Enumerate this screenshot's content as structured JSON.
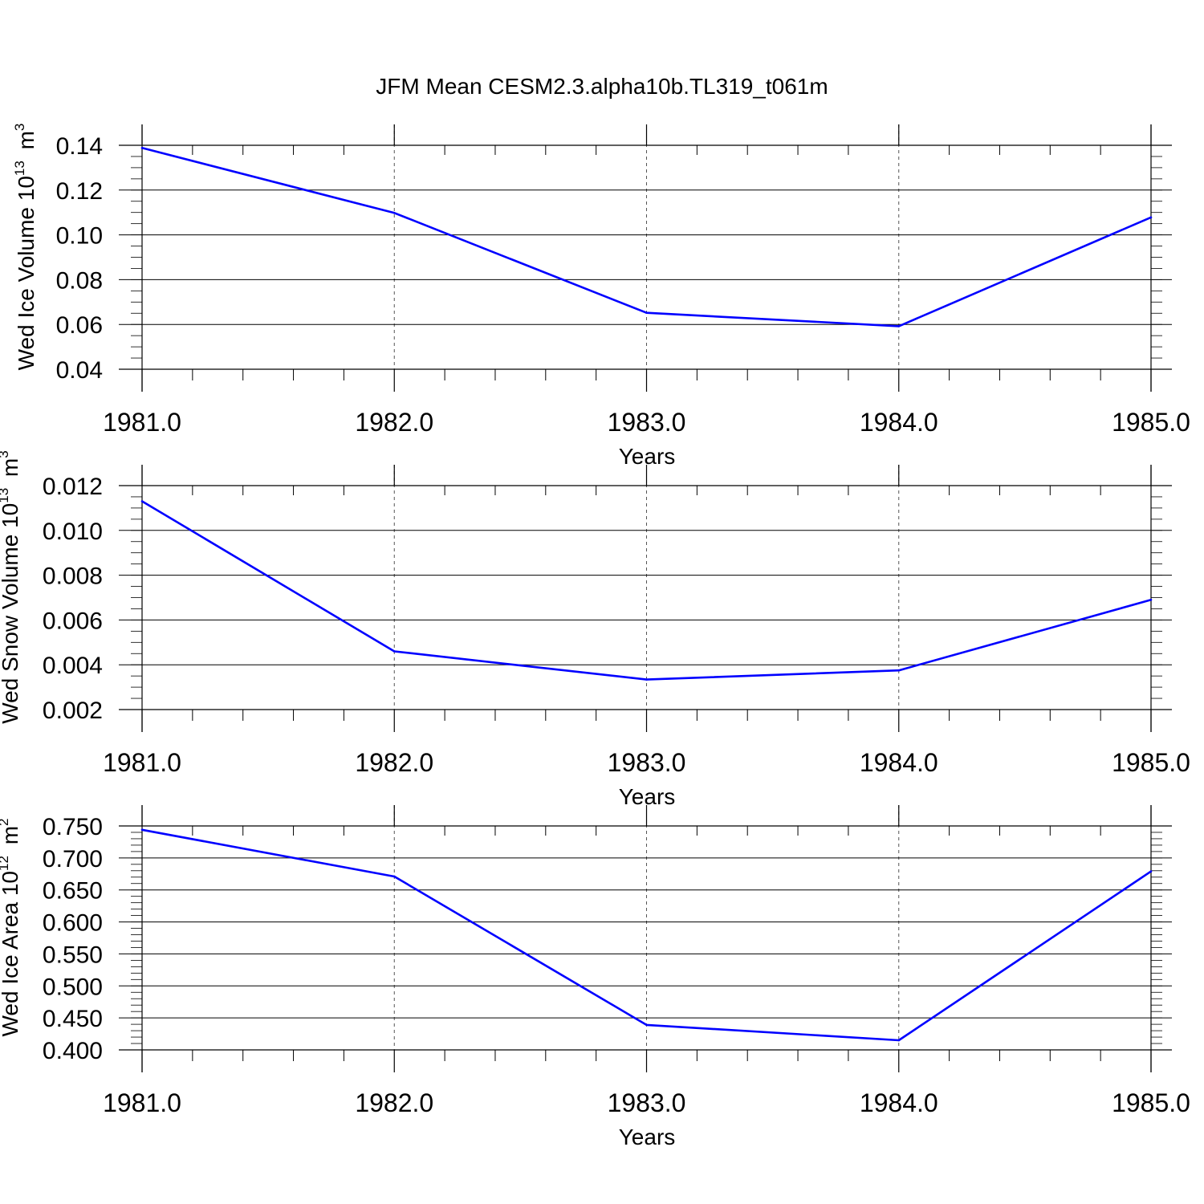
{
  "title": "JFM Mean CESM2.3.alpha10b.TL319_t061m",
  "style": {
    "line_color": "#0000ff",
    "axis_color": "#000000",
    "grid_color": "#555555"
  },
  "chart_data": [
    {
      "type": "line",
      "ylabel": "Wed Ice Volume 10",
      "ylabel_sup": "13",
      "ylabel_unit": "m",
      "ylabel_unit_sup": "3",
      "xlabel": "Years",
      "xlim": [
        1981.0,
        1985.0
      ],
      "ylim": [
        0.04,
        0.14
      ],
      "x_ticks": [
        "1981.0",
        "1982.0",
        "1983.0",
        "1984.0",
        "1985.0"
      ],
      "y_ticks": [
        "0.04",
        "0.06",
        "0.08",
        "0.10",
        "0.12",
        "0.14"
      ],
      "x": [
        1981,
        1982,
        1983,
        1984,
        1985
      ],
      "values": [
        0.1388,
        0.1098,
        0.0652,
        0.0592,
        0.1078
      ],
      "grid": "vertical dashed at major x ticks"
    },
    {
      "type": "line",
      "ylabel": "Wed Snow Volume 10",
      "ylabel_sup": "13",
      "ylabel_unit": "m",
      "ylabel_unit_sup": "3",
      "xlabel": "Years",
      "xlim": [
        1981.0,
        1985.0
      ],
      "ylim": [
        0.002,
        0.012
      ],
      "x_ticks": [
        "1981.0",
        "1982.0",
        "1983.0",
        "1984.0",
        "1985.0"
      ],
      "y_ticks": [
        "0.002",
        "0.004",
        "0.006",
        "0.008",
        "0.010",
        "0.012"
      ],
      "x": [
        1981,
        1982,
        1983,
        1984,
        1985
      ],
      "values": [
        0.0113,
        0.0046,
        0.00334,
        0.00375,
        0.0069
      ],
      "grid": "vertical dashed at major x ticks"
    },
    {
      "type": "line",
      "ylabel": "Wed Ice Area 10",
      "ylabel_sup": "12",
      "ylabel_unit": "m",
      "ylabel_unit_sup": "2",
      "xlabel": "Years",
      "xlim": [
        1981.0,
        1985.0
      ],
      "ylim": [
        0.4,
        0.75
      ],
      "x_ticks": [
        "1981.0",
        "1982.0",
        "1983.0",
        "1984.0",
        "1985.0"
      ],
      "y_ticks": [
        "0.400",
        "0.450",
        "0.500",
        "0.550",
        "0.600",
        "0.650",
        "0.700",
        "0.750"
      ],
      "x": [
        1981,
        1982,
        1983,
        1984,
        1985
      ],
      "values": [
        0.744,
        0.671,
        0.439,
        0.415,
        0.679
      ],
      "grid": "vertical dashed at major x ticks"
    }
  ]
}
